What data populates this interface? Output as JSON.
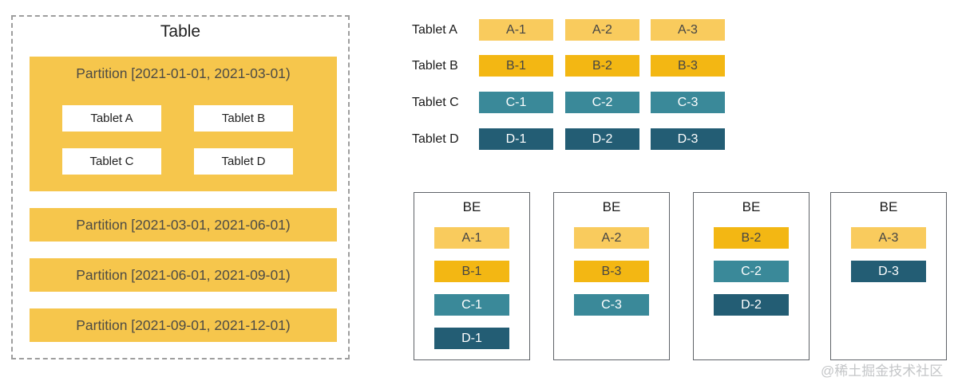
{
  "colors": {
    "partition_yellow": "#F6C64C",
    "replica_a": "#F9CB5D",
    "replica_b": "#F3B713",
    "replica_c": "#3A8999",
    "replica_d": "#235D74",
    "dark_text": "#454545",
    "light_text": "#FFFFFF",
    "panel_border": "#9E9E9E",
    "be_border": "#5F6368",
    "watermark_gray": "#C4C6C8"
  },
  "table_panel": {
    "title": "Table",
    "first_partition": {
      "label": "Partition [2021-01-01, 2021-03-01)",
      "tablets": [
        "Tablet A",
        "Tablet B",
        "Tablet C",
        "Tablet D"
      ]
    },
    "other_partitions": [
      "Partition [2021-03-01, 2021-06-01)",
      "Partition [2021-06-01, 2021-09-01)",
      "Partition [2021-09-01, 2021-12-01)"
    ]
  },
  "tablet_replica_grid": {
    "rows": [
      {
        "label": "Tablet A",
        "color": "#F9CB5D",
        "text_color": "#454545",
        "replicas": [
          "A-1",
          "A-2",
          "A-3"
        ]
      },
      {
        "label": "Tablet B",
        "color": "#F3B713",
        "text_color": "#454545",
        "replicas": [
          "B-1",
          "B-2",
          "B-3"
        ]
      },
      {
        "label": "Tablet C",
        "color": "#3A8999",
        "text_color": "#FFFFFF",
        "replicas": [
          "C-1",
          "C-2",
          "C-3"
        ]
      },
      {
        "label": "Tablet D",
        "color": "#235D74",
        "text_color": "#FFFFFF",
        "replicas": [
          "D-1",
          "D-2",
          "D-3"
        ]
      }
    ]
  },
  "backend_nodes": [
    {
      "title": "BE",
      "replicas": [
        {
          "label": "A-1",
          "color": "#F9CB5D",
          "text_color": "#454545"
        },
        {
          "label": "B-1",
          "color": "#F3B713",
          "text_color": "#454545"
        },
        {
          "label": "C-1",
          "color": "#3A8999",
          "text_color": "#FFFFFF"
        },
        {
          "label": "D-1",
          "color": "#235D74",
          "text_color": "#FFFFFF"
        }
      ]
    },
    {
      "title": "BE",
      "replicas": [
        {
          "label": "A-2",
          "color": "#F9CB5D",
          "text_color": "#454545"
        },
        {
          "label": "B-3",
          "color": "#F3B713",
          "text_color": "#454545"
        },
        {
          "label": "C-3",
          "color": "#3A8999",
          "text_color": "#FFFFFF"
        }
      ]
    },
    {
      "title": "BE",
      "replicas": [
        {
          "label": "B-2",
          "color": "#F3B713",
          "text_color": "#454545"
        },
        {
          "label": "C-2",
          "color": "#3A8999",
          "text_color": "#FFFFFF"
        },
        {
          "label": "D-2",
          "color": "#235D74",
          "text_color": "#FFFFFF"
        }
      ]
    },
    {
      "title": "BE",
      "replicas": [
        {
          "label": "A-3",
          "color": "#F9CB5D",
          "text_color": "#454545"
        },
        {
          "label": "D-3",
          "color": "#235D74",
          "text_color": "#FFFFFF"
        }
      ]
    }
  ],
  "watermark": "@稀土掘金技术社区"
}
